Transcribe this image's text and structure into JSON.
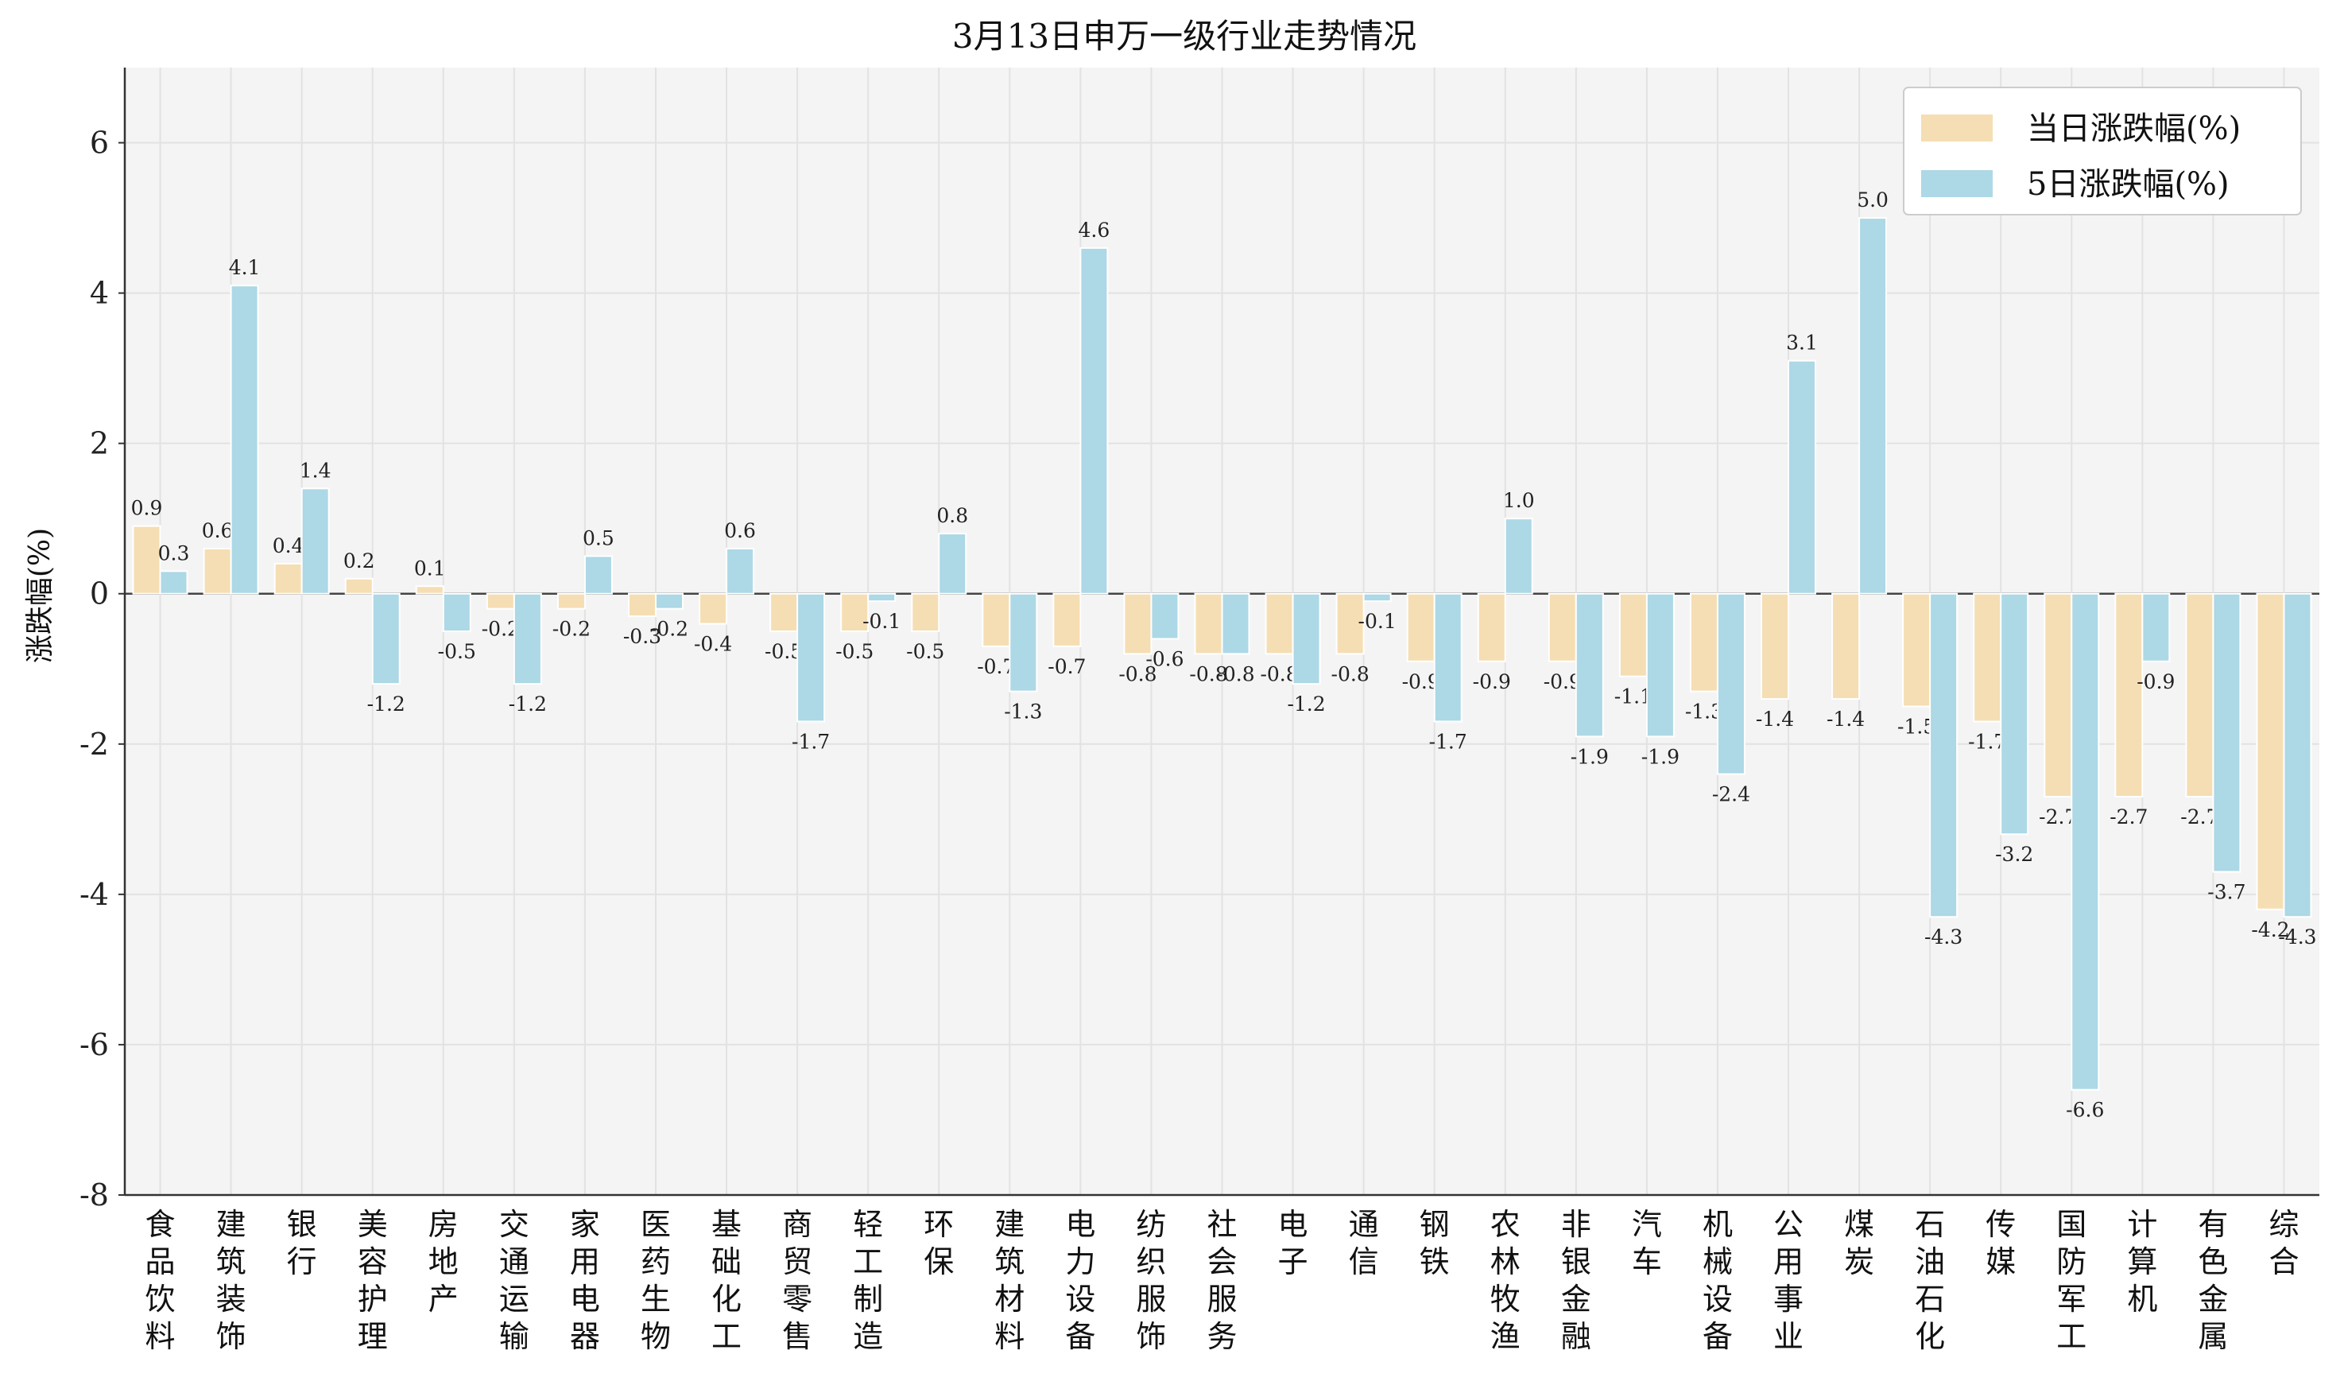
{
  "chart_data": {
    "type": "bar",
    "title": "3月13日申万一级行业走势情况",
    "xlabel": "",
    "ylabel": "涨跌幅(%)",
    "ylim": [
      -8,
      7
    ],
    "yticks": [
      -8,
      -6,
      -4,
      -2,
      0,
      2,
      4,
      6
    ],
    "grid": true,
    "legend_position": "top-right",
    "categories": [
      "食品饮料",
      "建筑装饰",
      "银行",
      "美容护理",
      "房地产",
      "交通运输",
      "家用电器",
      "医药生物",
      "基础化工",
      "商贸零售",
      "轻工制造",
      "环保",
      "建筑材料",
      "电力设备",
      "纺织服饰",
      "社会服务",
      "电子",
      "通信",
      "钢铁",
      "农林牧渔",
      "非银金融",
      "汽车",
      "机械设备",
      "公用事业",
      "煤炭",
      "石油石化",
      "传媒",
      "国防军工",
      "计算机",
      "有色金属",
      "综合"
    ],
    "series": [
      {
        "name": "当日涨跌幅(%)",
        "color": "#F5DEB3",
        "values": [
          0.9,
          0.6,
          0.4,
          0.2,
          0.1,
          -0.2,
          -0.2,
          -0.3,
          -0.4,
          -0.5,
          -0.5,
          -0.5,
          -0.7,
          -0.7,
          -0.8,
          -0.8,
          -0.8,
          -0.8,
          -0.9,
          -0.9,
          -0.9,
          -1.1,
          -1.3,
          -1.4,
          -1.4,
          -1.5,
          -1.7,
          -2.7,
          -2.7,
          -2.7,
          -4.2
        ]
      },
      {
        "name": "5日涨跌幅(%)",
        "color": "#ADD8E6",
        "values": [
          0.3,
          4.1,
          1.4,
          -1.2,
          -0.5,
          -1.2,
          0.5,
          -0.2,
          0.6,
          -1.7,
          -0.1,
          0.8,
          -1.3,
          4.6,
          -0.6,
          -0.8,
          -1.2,
          -0.1,
          -1.7,
          1.0,
          -1.9,
          -1.9,
          -2.4,
          3.1,
          5.0,
          -4.3,
          -3.2,
          -6.6,
          -0.9,
          -3.7,
          -4.3
        ]
      }
    ]
  }
}
